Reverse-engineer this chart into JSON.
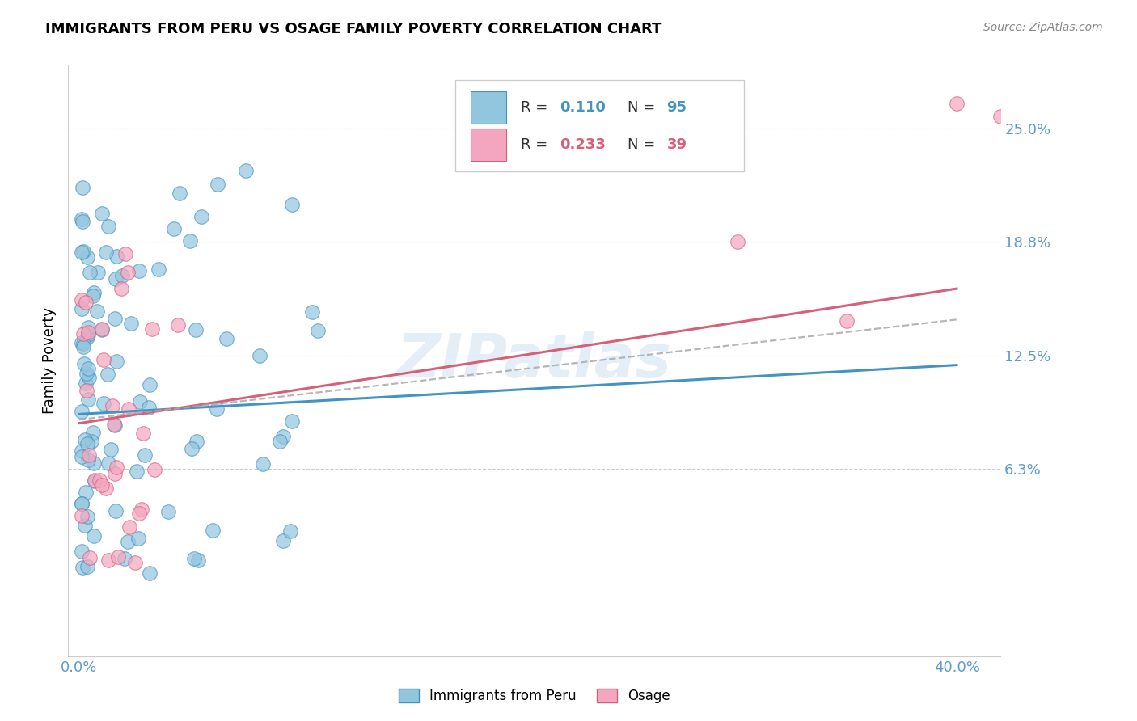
{
  "title": "IMMIGRANTS FROM PERU VS OSAGE FAMILY POVERTY CORRELATION CHART",
  "source": "Source: ZipAtlas.com",
  "ylabel": "Family Poverty",
  "ytick_labels": [
    "25.0%",
    "18.8%",
    "12.5%",
    "6.3%"
  ],
  "ytick_values": [
    0.25,
    0.188,
    0.125,
    0.063
  ],
  "xtick_labels": [
    "0.0%",
    "40.0%"
  ],
  "xtick_values": [
    0.0,
    0.4
  ],
  "xlim": [
    -0.005,
    0.42
  ],
  "ylim": [
    -0.04,
    0.285
  ],
  "watermark": "ZIPatlas",
  "legend_r1": "R =  0.110",
  "legend_n1": "N = 95",
  "legend_r2": "R =  0.233",
  "legend_n2": "N = 39",
  "color_blue": "#92c5de",
  "color_pink": "#f4a6c0",
  "color_blue_line": "#4393c3",
  "color_pink_line": "#d6607a",
  "color_axis_text": "#5b9bd5",
  "legend_r_color": "#555555",
  "legend_n_color_blue": "#4393c3",
  "legend_n_color_pink": "#d6607a"
}
